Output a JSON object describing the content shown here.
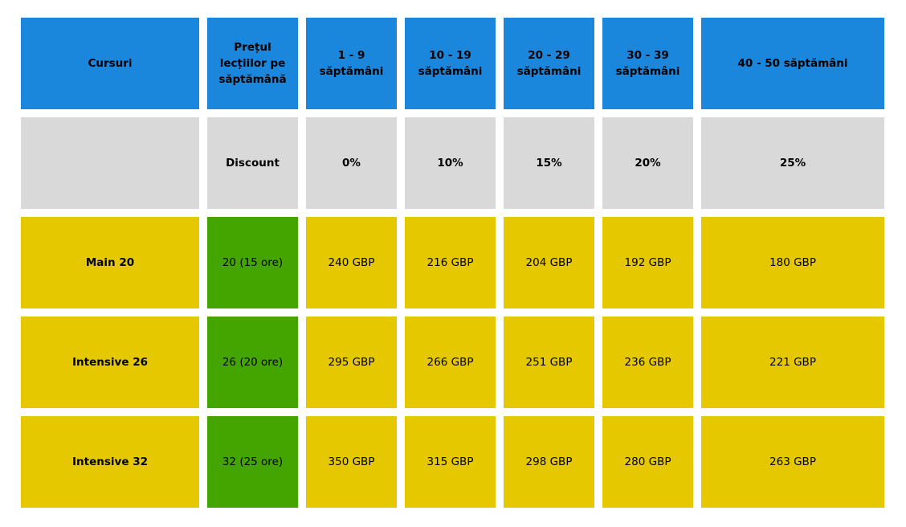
{
  "chart_data": {
    "type": "table",
    "columns": [
      "Cursuri",
      "Prețul lecțiilor pe săptămână",
      "1 - 9 săptămâni",
      "10 - 19 săptămâni",
      "20 - 29 săptămâni",
      "30 - 39 săptămâni",
      "40 - 50 săptămâni"
    ],
    "discount_row": [
      "",
      "Discount",
      "0%",
      "10%",
      "15%",
      "20%",
      "25%"
    ],
    "rows": [
      [
        "Main 20",
        "20 (15 ore)",
        "240 GBP",
        "216 GBP",
        "204 GBP",
        "192 GBP",
        "180 GBP"
      ],
      [
        "Intensive 26",
        "26 (20 ore)",
        "295 GBP",
        "266 GBP",
        "251 GBP",
        "236 GBP",
        "221 GBP"
      ],
      [
        "Intensive 32",
        "32 (25 ore)",
        "350 GBP",
        "315 GBP",
        "298 GBP",
        "280 GBP",
        "263 GBP"
      ]
    ],
    "colors": {
      "header": "#1a86dc",
      "discount": "#d9d9d9",
      "price_cells": "#e6c800",
      "lesson_cells": "#44a500"
    }
  }
}
